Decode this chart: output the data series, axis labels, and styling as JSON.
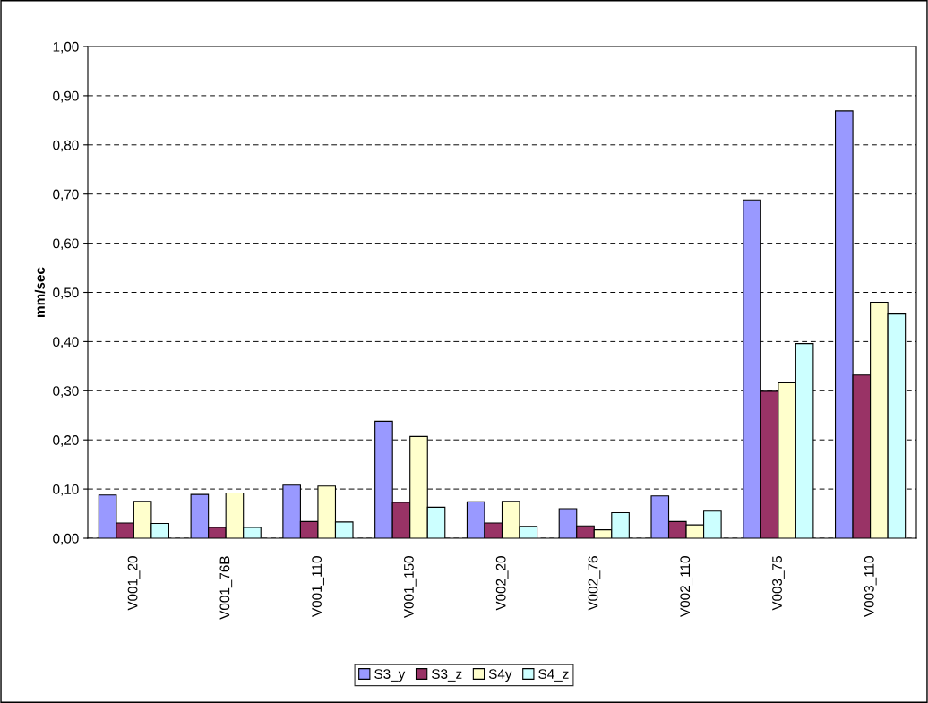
{
  "chart_data": {
    "type": "bar",
    "ylabel": "mm/sec",
    "categories": [
      "V001_20",
      "V001_76B",
      "V001_110",
      "V001_150",
      "V002_20",
      "V002_76",
      "V002_110",
      "V003_75",
      "V003_110"
    ],
    "series": [
      {
        "name": "S3_y",
        "color": "#9999ff",
        "values": [
          0.088,
          0.089,
          0.108,
          0.238,
          0.074,
          0.06,
          0.086,
          0.688,
          0.869
        ]
      },
      {
        "name": "S3_z",
        "color": "#993366",
        "values": [
          0.031,
          0.022,
          0.034,
          0.073,
          0.031,
          0.025,
          0.034,
          0.299,
          0.332
        ]
      },
      {
        "name": "S4y",
        "color": "#ffffcc",
        "values": [
          0.075,
          0.092,
          0.106,
          0.207,
          0.075,
          0.017,
          0.027,
          0.316,
          0.48
        ]
      },
      {
        "name": "S4_z",
        "color": "#ccffff",
        "values": [
          0.03,
          0.022,
          0.033,
          0.063,
          0.024,
          0.052,
          0.055,
          0.396,
          0.456
        ]
      }
    ],
    "ylim": [
      0,
      1
    ],
    "yticks": [
      {
        "value": 0,
        "label": "0,00"
      },
      {
        "value": 0.1,
        "label": "0,10"
      },
      {
        "value": 0.2,
        "label": "0,20"
      },
      {
        "value": 0.3,
        "label": "0,30"
      },
      {
        "value": 0.4,
        "label": "0,40"
      },
      {
        "value": 0.5,
        "label": "0,50"
      },
      {
        "value": 0.6,
        "label": "0,60"
      },
      {
        "value": 0.7,
        "label": "0,70"
      },
      {
        "value": 0.8,
        "label": "0,80"
      },
      {
        "value": 0.9,
        "label": "0,90"
      },
      {
        "value": 1.0,
        "label": "1,00"
      }
    ],
    "grid": "y",
    "legend": "bottom"
  }
}
